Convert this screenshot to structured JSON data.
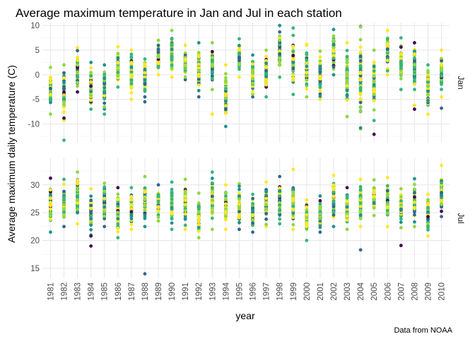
{
  "chart_data": {
    "type": "scatter",
    "title": "Average maximum temperature in Jan and Jul in each station",
    "xlabel": "year",
    "ylabel": "Average maximum daily temperature (C)",
    "caption": "Data from NOAA",
    "grid": true,
    "x_categories": [
      "1981",
      "1982",
      "1983",
      "1984",
      "1985",
      "1986",
      "1987",
      "1988",
      "1989",
      "1990",
      "1991",
      "1992",
      "1993",
      "1994",
      "1995",
      "1996",
      "1997",
      "1998",
      "1999",
      "2000",
      "2001",
      "2002",
      "2003",
      "2004",
      "2005",
      "2006",
      "2007",
      "2008",
      "2009",
      "2010"
    ],
    "palette": [
      "#440154",
      "#31688e",
      "#21918c",
      "#35b779",
      "#90d743",
      "#fde725"
    ],
    "facets": [
      {
        "label": "Jan",
        "ylim": [
          -13.8,
          10.6
        ],
        "yticks": [
          -10,
          -5,
          0,
          5,
          10
        ],
        "ranges": [
          [
            -8,
            1.5
          ],
          [
            -9,
            2
          ],
          [
            -3.5,
            5.5
          ],
          [
            -7,
            2.5
          ],
          [
            -8,
            2
          ],
          [
            -2.5,
            5.7
          ],
          [
            -5,
            5
          ],
          [
            -4.5,
            3.2
          ],
          [
            0,
            7
          ],
          [
            -0.5,
            9
          ],
          [
            -1,
            6
          ],
          [
            -4.5,
            6.5
          ],
          [
            -3,
            6.5
          ],
          [
            -10.5,
            2
          ],
          [
            -0.5,
            7.3
          ],
          [
            -4.5,
            4
          ],
          [
            -4.5,
            5
          ],
          [
            -0.5,
            10
          ],
          [
            -4,
            8
          ],
          [
            -4.5,
            6
          ],
          [
            -5,
            4.8
          ],
          [
            0,
            9.2
          ],
          [
            -8.5,
            6.5
          ],
          [
            -11,
            9.8
          ],
          [
            -9.3,
            5
          ],
          [
            0,
            9
          ],
          [
            -3,
            7.5
          ],
          [
            -3,
            6.5
          ],
          [
            -8,
            2
          ],
          [
            -4.5,
            5
          ]
        ],
        "outliers": [
          [
            1982,
            -13.3
          ],
          [
            1982,
            -9.3
          ],
          [
            1982,
            -8.8
          ],
          [
            1988,
            -5.5
          ],
          [
            1993,
            -8
          ],
          [
            1999,
            9.5
          ],
          [
            2000,
            6.2
          ],
          [
            2003,
            3.7
          ],
          [
            2004,
            9.7
          ],
          [
            2004,
            -10.8
          ],
          [
            2005,
            -12.1
          ],
          [
            2008,
            -6.2
          ],
          [
            2008,
            -7
          ],
          [
            2010,
            -6.8
          ]
        ]
      },
      {
        "label": "Jul",
        "ylim": [
          13.2,
          34.8
        ],
        "yticks": [
          15,
          20,
          25,
          30
        ],
        "ranges": [
          [
            21.5,
            31.2
          ],
          [
            22.5,
            31
          ],
          [
            23,
            32.3
          ],
          [
            21,
            29.3
          ],
          [
            22.5,
            30.3
          ],
          [
            20.5,
            29.5
          ],
          [
            22,
            29.5
          ],
          [
            22.5,
            31.5
          ],
          [
            23.5,
            30
          ],
          [
            22,
            30.5
          ],
          [
            22,
            31
          ],
          [
            20.5,
            28.5
          ],
          [
            22,
            32.3
          ],
          [
            22,
            30
          ],
          [
            22,
            30.2
          ],
          [
            21.5,
            28.3
          ],
          [
            22.5,
            30.5
          ],
          [
            23,
            31.5
          ],
          [
            22,
            32.8
          ],
          [
            20,
            27.3
          ],
          [
            21.5,
            28
          ],
          [
            22.5,
            31.7
          ],
          [
            22,
            29.5
          ],
          [
            22.5,
            31
          ],
          [
            24.5,
            30.9
          ],
          [
            22.5,
            31.3
          ],
          [
            22.3,
            29.3
          ],
          [
            22.5,
            31.1
          ],
          [
            20.8,
            28.3
          ],
          [
            24.3,
            33.5
          ]
        ],
        "outliers": [
          [
            1984,
            19
          ],
          [
            1984,
            20.8
          ],
          [
            1988,
            14
          ],
          [
            2004,
            18.3
          ],
          [
            2007,
            19.1
          ]
        ]
      }
    ]
  }
}
